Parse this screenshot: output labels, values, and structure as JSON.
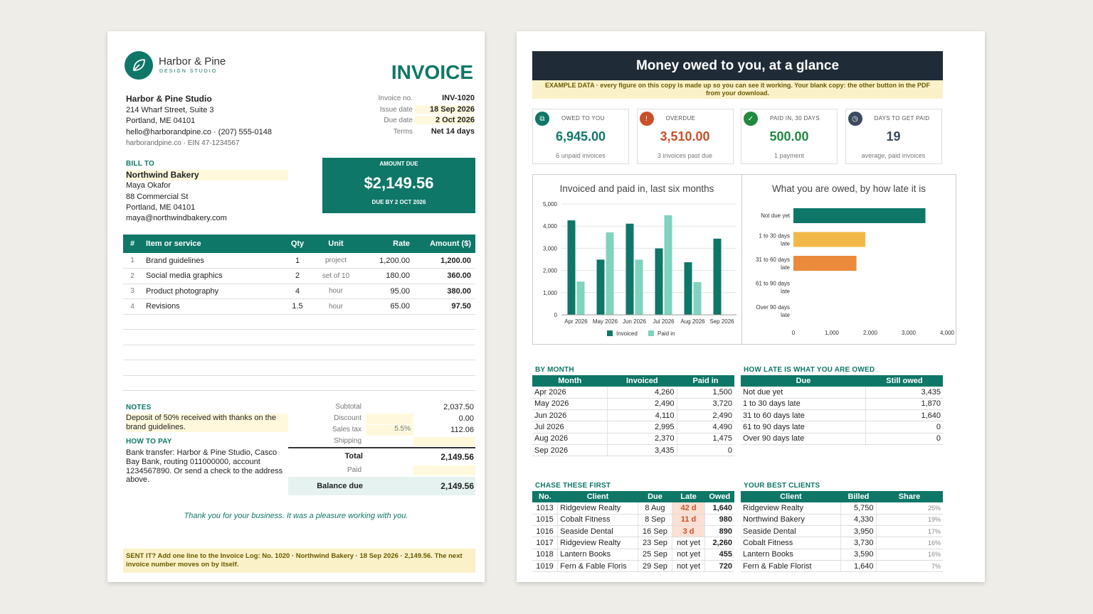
{
  "invoice": {
    "brand_name": "Harbor & Pine",
    "brand_sub": "DESIGN STUDIO",
    "heading": "INVOICE",
    "from": {
      "name": "Harbor & Pine Studio",
      "address1": "214 Wharf Street, Suite 3",
      "address2": "Portland, ME 04101",
      "contact": "hello@harborandpine.co · (207) 555-0148",
      "web": "harborandpine.co · EIN 47-1234567"
    },
    "meta": [
      {
        "label": "Invoice no.",
        "value": "INV-1020"
      },
      {
        "label": "Issue date",
        "value": "18 Sep 2026"
      },
      {
        "label": "Due date",
        "value": "2 Oct 2026"
      },
      {
        "label": "Terms",
        "value": "Net 14 days"
      }
    ],
    "bill_to_label": "BILL TO",
    "bill_to": {
      "name": "Northwind Bakery",
      "person": "Maya Okafor",
      "address1": "88 Commercial St",
      "address2": "Portland, ME 04101",
      "email": "maya@northwindbakery.com"
    },
    "amount_due": {
      "label": "AMOUNT DUE",
      "value": "$2,149.56",
      "due": "DUE BY 2 OCT 2026"
    },
    "columns": [
      "#",
      "Item or service",
      "Qty",
      "Unit",
      "Rate",
      "Amount ($)"
    ],
    "items": [
      {
        "n": "1",
        "item": "Brand guidelines",
        "qty": "1",
        "unit": "project",
        "rate": "1,200.00",
        "amount": "1,200.00"
      },
      {
        "n": "2",
        "item": "Social media graphics",
        "qty": "2",
        "unit": "set of 10",
        "rate": "180.00",
        "amount": "360.00"
      },
      {
        "n": "3",
        "item": "Product photography",
        "qty": "4",
        "unit": "hour",
        "rate": "95.00",
        "amount": "380.00"
      },
      {
        "n": "4",
        "item": "Revisions",
        "qty": "1.5",
        "unit": "hour",
        "rate": "65.00",
        "amount": "97.50"
      }
    ],
    "notes_label": "NOTES",
    "notes": "Deposit of 50% received with thanks on the brand guidelines.",
    "pay_label": "HOW TO PAY",
    "pay": "Bank transfer: Harbor & Pine Studio, Casco Bay Bank, routing 011000000, account 1234567890. Or send a check to the address above.",
    "totals": {
      "subtotal_label": "Subtotal",
      "subtotal": "2,037.50",
      "discount_label": "Discount",
      "discount": "0.00",
      "tax_label": "Sales tax",
      "tax_rate": "5.5%",
      "tax": "112.06",
      "shipping_label": "Shipping",
      "total_label": "Total",
      "total": "2,149.56",
      "paid_label": "Paid",
      "balance_label": "Balance due",
      "balance": "2,149.56"
    },
    "thanks": "Thank you for your business. It was a pleasure working with you.",
    "footer": "SENT IT?  Add one line to the Invoice Log:  No. 1020  ·  Northwind Bakery  ·  18 Sep 2026  ·  2,149.56. The next invoice number moves on by itself."
  },
  "dash": {
    "title": "Money owed to you, at a glance",
    "banner": "EXAMPLE DATA  ·  every figure on this copy is made up so you can see it working. Your blank copy: the other button in the PDF from your download.",
    "kpis": [
      {
        "title": "OWED TO YOU",
        "value": "6,945.00",
        "sub": "6 unpaid invoices",
        "color": "#0e7768",
        "icon": "coins-icon"
      },
      {
        "title": "OVERDUE",
        "value": "3,510.00",
        "sub": "3 invoices past due",
        "color": "#c9502a",
        "icon": "warning-icon"
      },
      {
        "title": "PAID IN, 30 DAYS",
        "value": "500.00",
        "sub": "1 payment",
        "color": "#1f8a3e",
        "icon": "check-icon"
      },
      {
        "title": "DAYS TO GET PAID",
        "value": "19",
        "sub": "average, paid invoices",
        "color": "#3b4a5e",
        "icon": "clock-icon"
      }
    ],
    "bymonth_label": "BY MONTH",
    "bymonth_cols": [
      "Month",
      "Invoiced",
      "Paid in"
    ],
    "bymonth": [
      [
        "Apr 2026",
        "4,260",
        "1,500"
      ],
      [
        "May 2026",
        "2,490",
        "3,720"
      ],
      [
        "Jun 2026",
        "4,110",
        "2,490"
      ],
      [
        "Jul 2026",
        "2,995",
        "4,490"
      ],
      [
        "Aug 2026",
        "2,370",
        "1,475"
      ],
      [
        "Sep 2026",
        "3,435",
        "0"
      ]
    ],
    "late_label": "HOW LATE IS WHAT YOU ARE OWED",
    "late_cols": [
      "Due",
      "Still owed"
    ],
    "late": [
      [
        "Not due yet",
        "3,435"
      ],
      [
        "1 to 30 days late",
        "1,870"
      ],
      [
        "31 to 60 days late",
        "1,640"
      ],
      [
        "61 to 90 days late",
        "0"
      ],
      [
        "Over 90 days late",
        "0"
      ]
    ],
    "chase_label": "CHASE THESE FIRST",
    "chase_cols": [
      "No.",
      "Client",
      "Due",
      "Late",
      "Owed"
    ],
    "chase": [
      [
        "1013",
        "Ridgeview Realty",
        "8 Aug",
        "42 d",
        "1,640"
      ],
      [
        "1015",
        "Cobalt Fitness",
        "8 Sep",
        "11 d",
        "980"
      ],
      [
        "1016",
        "Seaside Dental",
        "16 Sep",
        "3 d",
        "890"
      ],
      [
        "1017",
        "Ridgeview Realty",
        "23 Sep",
        "not yet",
        "2,260"
      ],
      [
        "1018",
        "Lantern Books",
        "25 Sep",
        "not yet",
        "455"
      ],
      [
        "1019",
        "Fern & Fable Floris",
        "29 Sep",
        "not yet",
        "720"
      ]
    ],
    "best_label": "YOUR BEST CLIENTS",
    "best_cols": [
      "Client",
      "Billed",
      "Share"
    ],
    "best": [
      [
        "Ridgeview Realty",
        "5,750",
        "25%"
      ],
      [
        "Northwind Bakery",
        "4,330",
        "19%"
      ],
      [
        "Seaside Dental",
        "3,950",
        "17%"
      ],
      [
        "Cobalt Fitness",
        "3,730",
        "16%"
      ],
      [
        "Lantern Books",
        "3,590",
        "16%"
      ],
      [
        "Fern & Fable Florist",
        "1,640",
        "7%"
      ]
    ],
    "best_share": [
      25,
      19,
      17,
      16,
      16,
      7
    ]
  },
  "chart_data": [
    {
      "type": "bar",
      "title": "Invoiced and paid in, last six months",
      "categories": [
        "Apr 2026",
        "May 2026",
        "Jun 2026",
        "Jul 2026",
        "Aug 2026",
        "Sep 2026"
      ],
      "series": [
        {
          "name": "Invoiced",
          "values": [
            4260,
            2490,
            4110,
            2995,
            2370,
            3435
          ],
          "color": "#0e7768"
        },
        {
          "name": "Paid in",
          "values": [
            1500,
            3720,
            2490,
            4490,
            1475,
            0
          ],
          "color": "#7fd3bf"
        }
      ],
      "ylim": [
        0,
        5000
      ],
      "yticks": [
        "0",
        "1,000",
        "2,000",
        "3,000",
        "4,000",
        "5,000"
      ],
      "legend": "bottom"
    },
    {
      "type": "bar",
      "orientation": "horizontal",
      "title": "What you are owed, by how late it is",
      "categories": [
        "Not due yet",
        "1 to 30 days late",
        "31 to 60 days late",
        "61 to 90 days late",
        "Over 90 days late"
      ],
      "values": [
        3435,
        1870,
        1640,
        0,
        0
      ],
      "colors": [
        "#0e7768",
        "#f2b847",
        "#ea8a3a",
        "#cccccc",
        "#cccccc"
      ],
      "xlim": [
        0,
        4000
      ],
      "xticks": [
        "0",
        "1,000",
        "2,000",
        "3,000",
        "4,000"
      ]
    }
  ]
}
